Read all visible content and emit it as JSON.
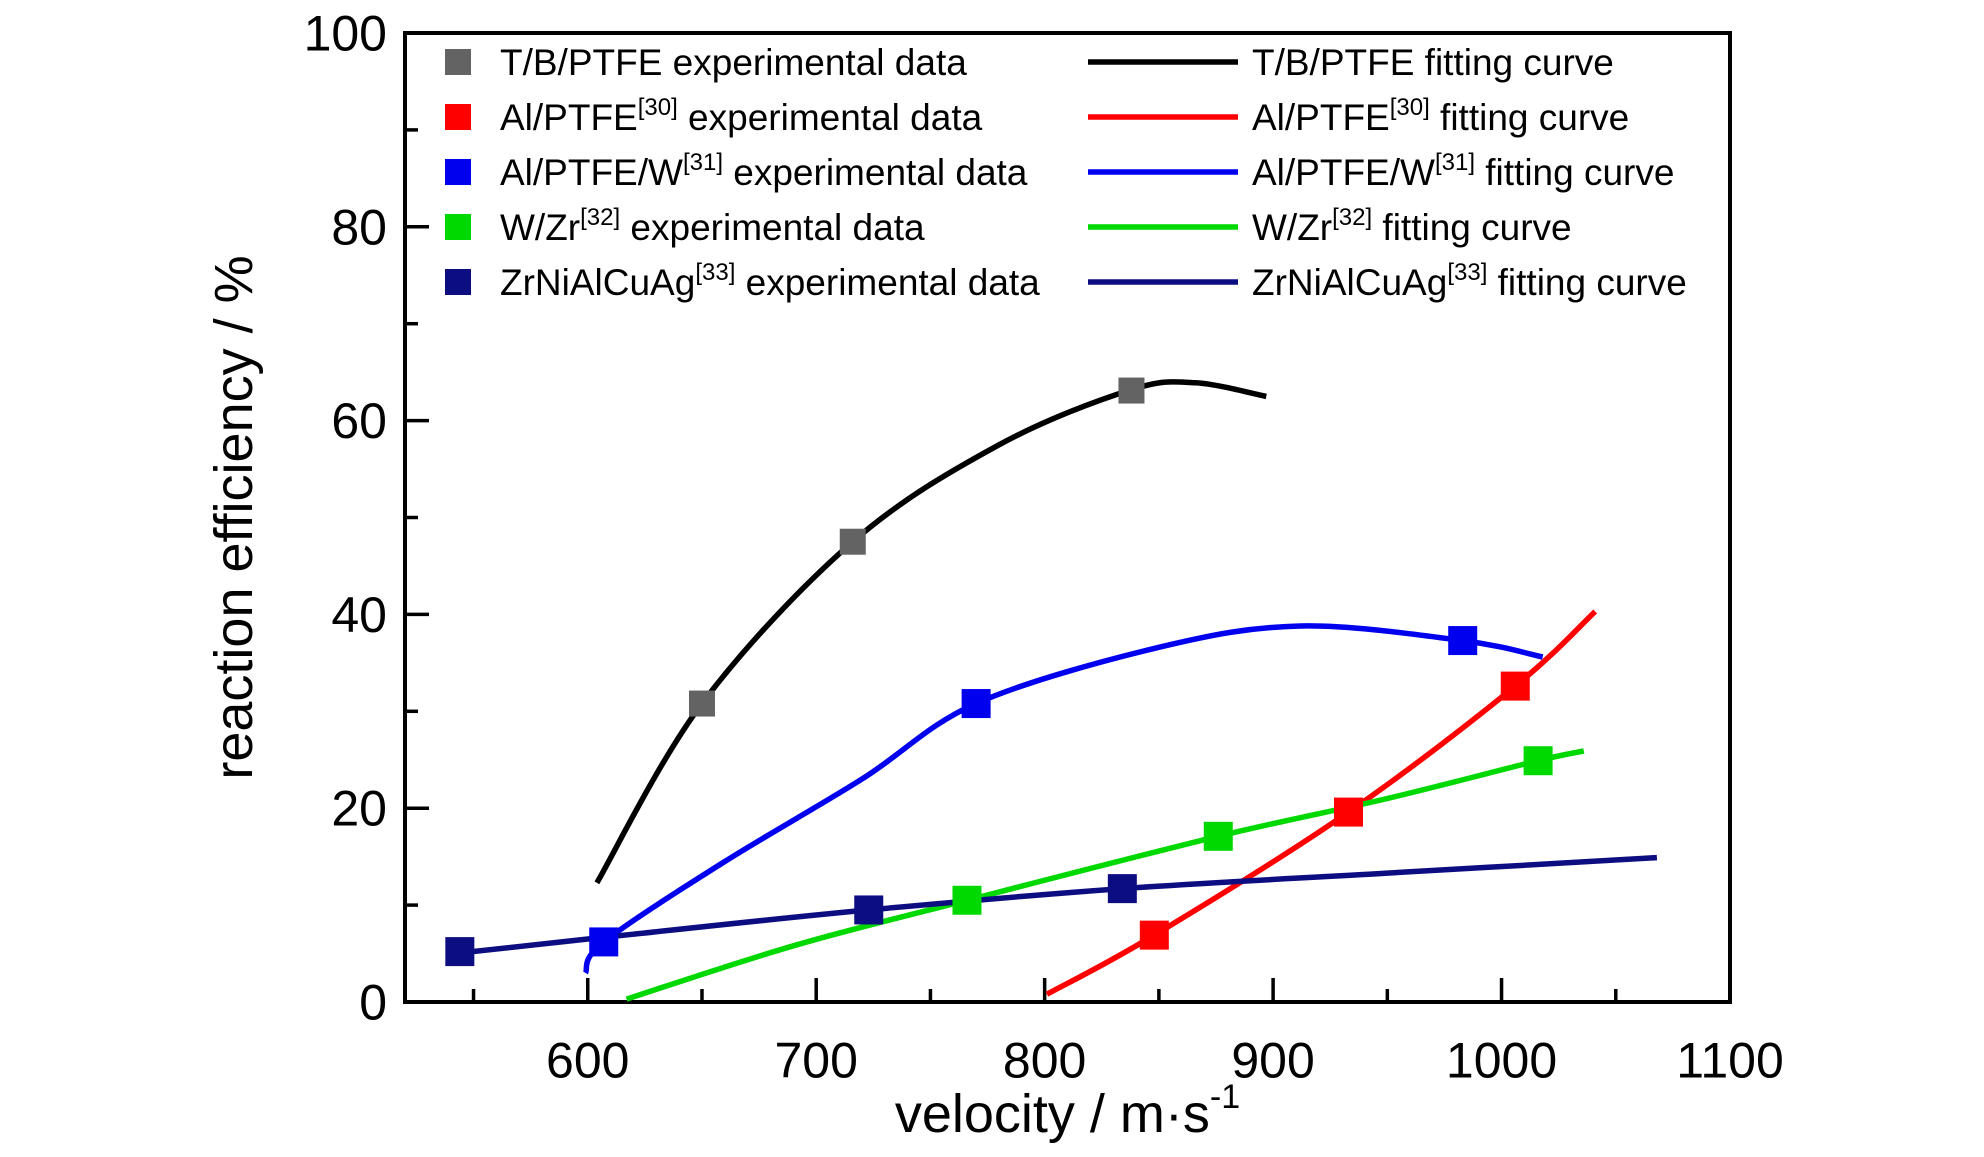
{
  "chart_data": {
    "type": "scatter",
    "title": "",
    "xlabel": {
      "text": "velocity / m·s",
      "sup": "-1"
    },
    "ylabel": "reaction efficiency / %",
    "xlim": [
      520,
      1100
    ],
    "ylim": [
      0,
      100
    ],
    "xticks_major": [
      600,
      700,
      800,
      900,
      1000,
      1100
    ],
    "xticks_minor": [
      550,
      650,
      750,
      850,
      950,
      1050
    ],
    "yticks_major": [
      0,
      20,
      40,
      60,
      80,
      100
    ],
    "yticks_minor": [
      10,
      30,
      50,
      70,
      90
    ],
    "grid": false,
    "legend_position": "top-inside",
    "series": [
      {
        "name": "T/B/PTFE",
        "sup": "",
        "marker_color": "#636363",
        "curve_color": "#000000",
        "experimental_label_suffix": " experimental data",
        "fitting_label_suffix": " fitting curve",
        "points": [
          [
            650,
            30.8
          ],
          [
            716,
            47.5
          ],
          [
            838,
            63.1
          ]
        ],
        "fit_curve": [
          [
            604,
            12.3
          ],
          [
            650,
            30.8
          ],
          [
            716,
            47.5
          ],
          [
            780,
            57.5
          ],
          [
            838,
            63.2
          ],
          [
            866,
            63.9
          ],
          [
            897,
            62.5
          ]
        ]
      },
      {
        "name": "Al/PTFE",
        "sup": "[30]",
        "marker_color": "#ff0000",
        "curve_color": "#ff0000",
        "experimental_label_suffix": " experimental data",
        "fitting_label_suffix": " fitting curve",
        "points": [
          [
            848,
            6.9
          ],
          [
            933,
            19.6
          ],
          [
            1006,
            32.6
          ]
        ],
        "fit_curve": [
          [
            801,
            0.8
          ],
          [
            848,
            6.9
          ],
          [
            933,
            19.6
          ],
          [
            1006,
            32.6
          ],
          [
            1041,
            40.3
          ]
        ]
      },
      {
        "name": "Al/PTFE/W",
        "sup": "[31]",
        "marker_color": "#0000ee",
        "curve_color": "#0000ee",
        "experimental_label_suffix": " experimental data",
        "fitting_label_suffix": " fitting curve",
        "points": [
          [
            607,
            6.2
          ],
          [
            770,
            30.8
          ],
          [
            983,
            37.3
          ]
        ],
        "fit_curve": [
          [
            599,
            3.0
          ],
          [
            607,
            6.2
          ],
          [
            660,
            14.5
          ],
          [
            720,
            23.0
          ],
          [
            770,
            30.8
          ],
          [
            850,
            36.6
          ],
          [
            912,
            38.8
          ],
          [
            983,
            37.3
          ],
          [
            1018,
            35.6
          ]
        ]
      },
      {
        "name": "W/Zr",
        "sup": "[32]",
        "marker_color": "#00d900",
        "curve_color": "#00d900",
        "experimental_label_suffix": " experimental data",
        "fitting_label_suffix": " fitting curve",
        "points": [
          [
            766,
            10.5
          ],
          [
            876,
            17.1
          ],
          [
            1016,
            24.9
          ]
        ],
        "fit_curve": [
          [
            617,
            0.3
          ],
          [
            690,
            5.8
          ],
          [
            766,
            10.5
          ],
          [
            876,
            17.1
          ],
          [
            950,
            21.0
          ],
          [
            1016,
            24.9
          ],
          [
            1036,
            25.9
          ]
        ]
      },
      {
        "name": "ZrNiAlCuAg",
        "sup": "[33]",
        "marker_color": "#0d0d82",
        "curve_color": "#0d0d82",
        "experimental_label_suffix": " experimental data",
        "fitting_label_suffix": " fitting curve",
        "points": [
          [
            544,
            5.2
          ],
          [
            723,
            9.5
          ],
          [
            834,
            11.7
          ]
        ],
        "fit_curve": [
          [
            538,
            4.9
          ],
          [
            620,
            7.0
          ],
          [
            723,
            9.5
          ],
          [
            834,
            11.7
          ],
          [
            950,
            13.3
          ],
          [
            1068,
            14.9
          ]
        ]
      }
    ]
  }
}
